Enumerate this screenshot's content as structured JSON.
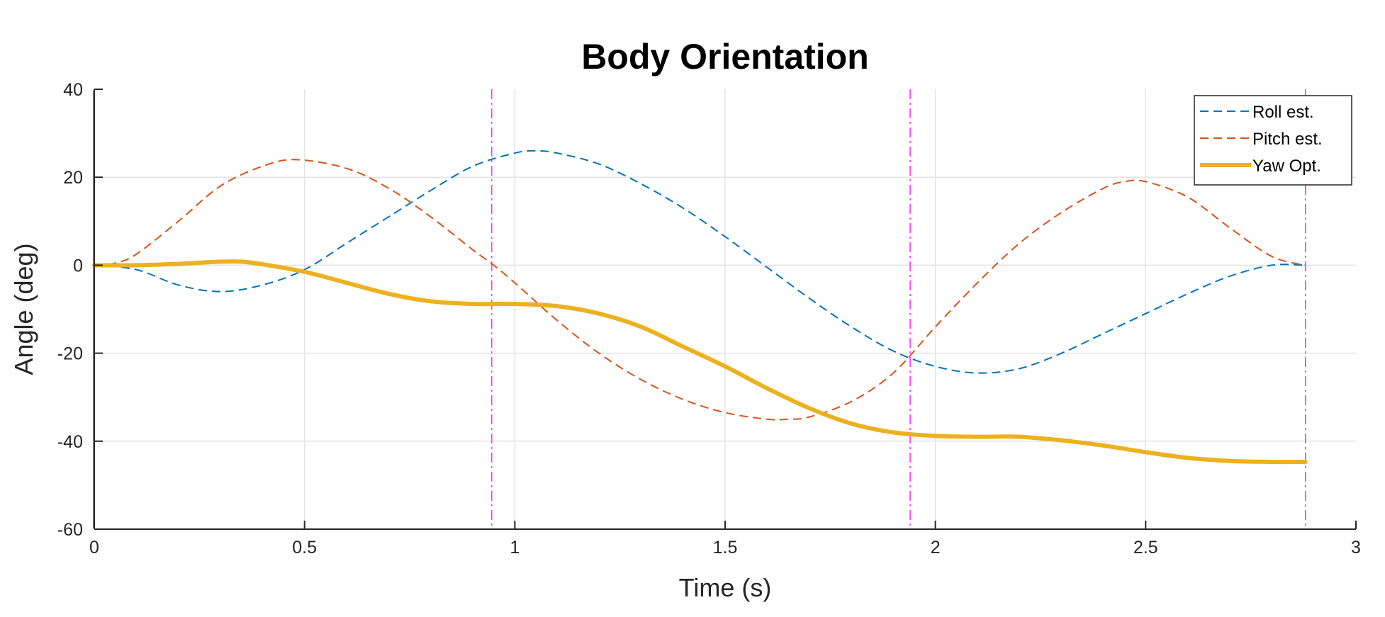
{
  "chart_data": {
    "type": "line",
    "title": "Body Orientation",
    "xlabel": "Time (s)",
    "ylabel": "Angle (deg)",
    "xlim": [
      0,
      3
    ],
    "ylim": [
      -60,
      40
    ],
    "xticks": [
      0,
      0.5,
      1,
      1.5,
      2,
      2.5,
      3
    ],
    "xtick_labels": [
      "0",
      "0.5",
      "1",
      "1.5",
      "2",
      "2.5",
      "3"
    ],
    "yticks": [
      40,
      20,
      0,
      -20,
      -40,
      -60
    ],
    "ytick_labels": [
      "40",
      "20",
      "0",
      "-20",
      "-40",
      "-60"
    ],
    "grid": true,
    "legend_position": "top-right",
    "vertical_markers": {
      "x": [
        0.945,
        1.94,
        2.88
      ],
      "color": "#ff33ff",
      "style": "dash-dot"
    },
    "series": [
      {
        "name": "Roll est.",
        "color": "#0072bd",
        "style": "dashed",
        "x": [
          0,
          0.1,
          0.2,
          0.3,
          0.4,
          0.5,
          0.6,
          0.7,
          0.8,
          0.9,
          1.0,
          1.05,
          1.1,
          1.2,
          1.3,
          1.4,
          1.5,
          1.6,
          1.7,
          1.8,
          1.9,
          2.0,
          2.1,
          2.2,
          2.3,
          2.4,
          2.5,
          2.6,
          2.7,
          2.8,
          2.88
        ],
        "y": [
          0,
          -1,
          -4.5,
          -6,
          -4.5,
          -1,
          5,
          11,
          17,
          22.5,
          25.5,
          26,
          25.5,
          23,
          18.5,
          13,
          6.5,
          -0.5,
          -7.5,
          -14,
          -19.5,
          -23,
          -24.5,
          -23.5,
          -20,
          -15.5,
          -11,
          -6.5,
          -2.5,
          0,
          0
        ]
      },
      {
        "name": "Pitch est.",
        "color": "#d95319",
        "style": "dashed",
        "x": [
          0,
          0.05,
          0.1,
          0.2,
          0.3,
          0.4,
          0.48,
          0.6,
          0.7,
          0.8,
          0.9,
          0.95,
          1.0,
          1.1,
          1.2,
          1.3,
          1.4,
          1.5,
          1.6,
          1.65,
          1.7,
          1.8,
          1.9,
          2.0,
          2.1,
          2.2,
          2.3,
          2.4,
          2.45,
          2.5,
          2.6,
          2.7,
          2.8,
          2.88
        ],
        "y": [
          0,
          0.5,
          2.5,
          10,
          18,
          22.5,
          24,
          22,
          17.5,
          11,
          3.5,
          0,
          -4,
          -12.5,
          -20,
          -26,
          -30.5,
          -33.5,
          -35,
          -35,
          -34.5,
          -31,
          -24.5,
          -14,
          -4,
          5,
          12,
          17.5,
          19,
          19,
          15.5,
          8.5,
          2,
          0
        ]
      },
      {
        "name": "Yaw Opt.",
        "color": "#edb120",
        "style": "solid",
        "x": [
          0,
          0.1,
          0.2,
          0.3,
          0.35,
          0.4,
          0.5,
          0.6,
          0.7,
          0.8,
          0.9,
          1.0,
          1.1,
          1.2,
          1.3,
          1.4,
          1.5,
          1.6,
          1.7,
          1.8,
          1.9,
          2.0,
          2.1,
          2.2,
          2.3,
          2.4,
          2.5,
          2.6,
          2.7,
          2.8,
          2.88
        ],
        "y": [
          0,
          0,
          0.3,
          0.8,
          0.8,
          0.2,
          -1.5,
          -4,
          -6.5,
          -8.2,
          -8.8,
          -8.8,
          -9.3,
          -11,
          -14,
          -18.5,
          -23,
          -28,
          -32.5,
          -36,
          -38,
          -38.8,
          -39,
          -39,
          -39.8,
          -41,
          -42.5,
          -43.8,
          -44.5,
          -44.7,
          -44.7
        ]
      }
    ]
  }
}
